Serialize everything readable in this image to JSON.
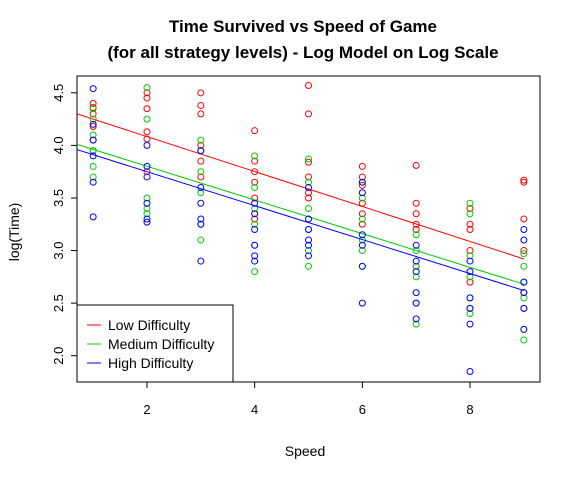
{
  "chart_data": {
    "type": "scatter",
    "title": "Time Survived vs Speed of Game",
    "subtitle": "(for all strategy levels) - Log Model on Log Scale",
    "xlabel": "Speed",
    "ylabel": "log(Time)",
    "xlim": [
      0.7,
      9.3
    ],
    "ylim": [
      1.75,
      4.66
    ],
    "xticks": [
      2,
      4,
      6,
      8
    ],
    "yticks": [
      2.0,
      2.5,
      3.0,
      3.5,
      4.0,
      4.5
    ],
    "ytick_labels": [
      "2.0",
      "2.5",
      "3.0",
      "3.5",
      "4.0",
      "4.5"
    ],
    "grid": false,
    "legend_position": "bottom-left",
    "series": [
      {
        "name": "Low Difficulty",
        "color": "#ff0000",
        "fit_line": [
          [
            0.7,
            4.3
          ],
          [
            9.0,
            2.92
          ]
        ],
        "points": [
          [
            1,
            4.4
          ],
          [
            1,
            4.36
          ],
          [
            1,
            4.3
          ],
          [
            1,
            4.18
          ],
          [
            1,
            4.05
          ],
          [
            1,
            3.95
          ],
          [
            2,
            4.5
          ],
          [
            2,
            4.45
          ],
          [
            2,
            4.35
          ],
          [
            2,
            4.13
          ],
          [
            2,
            4.06
          ],
          [
            2,
            3.75
          ],
          [
            3,
            4.5
          ],
          [
            3,
            4.38
          ],
          [
            3,
            4.3
          ],
          [
            3,
            4.0
          ],
          [
            3,
            3.85
          ],
          [
            3,
            3.7
          ],
          [
            4,
            4.14
          ],
          [
            4,
            3.85
          ],
          [
            4,
            3.75
          ],
          [
            4,
            3.65
          ],
          [
            4,
            3.5
          ],
          [
            4,
            3.3
          ],
          [
            5,
            4.57
          ],
          [
            5,
            4.3
          ],
          [
            5,
            3.84
          ],
          [
            5,
            3.7
          ],
          [
            5,
            3.55
          ],
          [
            5,
            3.5
          ],
          [
            6,
            3.8
          ],
          [
            6,
            3.7
          ],
          [
            6,
            3.62
          ],
          [
            6,
            3.45
          ],
          [
            6,
            3.35
          ],
          [
            6,
            3.25
          ],
          [
            7,
            3.81
          ],
          [
            7,
            3.45
          ],
          [
            7,
            3.35
          ],
          [
            7,
            3.25
          ],
          [
            7,
            3.2
          ],
          [
            7,
            2.85
          ],
          [
            8,
            3.4
          ],
          [
            8,
            3.25
          ],
          [
            8,
            3.2
          ],
          [
            8,
            3.0
          ],
          [
            8,
            2.7
          ],
          [
            8,
            2.45
          ],
          [
            9,
            3.67
          ],
          [
            9,
            3.65
          ],
          [
            9,
            3.3
          ],
          [
            9,
            3.0
          ],
          [
            9,
            2.6
          ],
          [
            9,
            2.45
          ]
        ]
      },
      {
        "name": "Medium Difficulty",
        "color": "#00cc00",
        "fit_line": [
          [
            0.7,
            4.01
          ],
          [
            9.0,
            2.68
          ]
        ],
        "points": [
          [
            1,
            4.35
          ],
          [
            1,
            4.25
          ],
          [
            1,
            4.1
          ],
          [
            1,
            3.95
          ],
          [
            1,
            3.8
          ],
          [
            1,
            3.7
          ],
          [
            2,
            4.55
          ],
          [
            2,
            4.25
          ],
          [
            2,
            3.8
          ],
          [
            2,
            3.5
          ],
          [
            2,
            3.4
          ],
          [
            2,
            3.35
          ],
          [
            3,
            4.05
          ],
          [
            3,
            3.95
          ],
          [
            3,
            3.75
          ],
          [
            3,
            3.25
          ],
          [
            3,
            3.1
          ],
          [
            3,
            3.55
          ],
          [
            4,
            3.9
          ],
          [
            4,
            3.6
          ],
          [
            4,
            3.4
          ],
          [
            4,
            3.25
          ],
          [
            4,
            3.05
          ],
          [
            4,
            2.8
          ],
          [
            5,
            3.87
          ],
          [
            5,
            3.65
          ],
          [
            5,
            3.4
          ],
          [
            5,
            3.2
          ],
          [
            5,
            3.0
          ],
          [
            5,
            2.85
          ],
          [
            6,
            3.65
          ],
          [
            6,
            3.5
          ],
          [
            6,
            3.3
          ],
          [
            6,
            3.1
          ],
          [
            6,
            3.0
          ],
          [
            6,
            2.85
          ],
          [
            7,
            3.15
          ],
          [
            7,
            3.0
          ],
          [
            7,
            2.85
          ],
          [
            7,
            2.75
          ],
          [
            7,
            2.5
          ],
          [
            7,
            2.3
          ],
          [
            8,
            3.45
          ],
          [
            8,
            3.35
          ],
          [
            8,
            2.95
          ],
          [
            8,
            2.75
          ],
          [
            8,
            2.55
          ],
          [
            8,
            2.4
          ],
          [
            9,
            2.97
          ],
          [
            9,
            2.85
          ],
          [
            9,
            2.7
          ],
          [
            9,
            2.55
          ],
          [
            9,
            2.25
          ],
          [
            9,
            2.15
          ]
        ]
      },
      {
        "name": "High Difficulty",
        "color": "#0000ff",
        "fit_line": [
          [
            0.7,
            3.96
          ],
          [
            9.0,
            2.62
          ]
        ],
        "points": [
          [
            1,
            4.54
          ],
          [
            1,
            4.2
          ],
          [
            1,
            4.05
          ],
          [
            1,
            3.9
          ],
          [
            1,
            3.65
          ],
          [
            1,
            3.32
          ],
          [
            2,
            4.0
          ],
          [
            2,
            3.8
          ],
          [
            2,
            3.7
          ],
          [
            2,
            3.45
          ],
          [
            2,
            3.3
          ],
          [
            2,
            3.27
          ],
          [
            3,
            3.95
          ],
          [
            3,
            3.6
          ],
          [
            3,
            3.45
          ],
          [
            3,
            3.3
          ],
          [
            3,
            3.25
          ],
          [
            3,
            2.9
          ],
          [
            4,
            3.45
          ],
          [
            4,
            3.35
          ],
          [
            4,
            3.2
          ],
          [
            4,
            3.05
          ],
          [
            4,
            2.95
          ],
          [
            4,
            2.9
          ],
          [
            5,
            3.6
          ],
          [
            5,
            3.3
          ],
          [
            5,
            3.2
          ],
          [
            5,
            3.1
          ],
          [
            5,
            3.05
          ],
          [
            5,
            2.95
          ],
          [
            6,
            3.65
          ],
          [
            6,
            3.55
          ],
          [
            6,
            3.15
          ],
          [
            6,
            3.05
          ],
          [
            6,
            2.85
          ],
          [
            6,
            2.5
          ],
          [
            7,
            3.05
          ],
          [
            7,
            2.9
          ],
          [
            7,
            2.8
          ],
          [
            7,
            2.6
          ],
          [
            7,
            2.5
          ],
          [
            7,
            2.35
          ],
          [
            8,
            2.9
          ],
          [
            8,
            2.8
          ],
          [
            8,
            2.55
          ],
          [
            8,
            2.45
          ],
          [
            8,
            2.3
          ],
          [
            8,
            1.85
          ],
          [
            9,
            3.2
          ],
          [
            9,
            3.1
          ],
          [
            9,
            2.7
          ],
          [
            9,
            2.6
          ],
          [
            9,
            2.45
          ],
          [
            9,
            2.25
          ]
        ]
      }
    ]
  }
}
